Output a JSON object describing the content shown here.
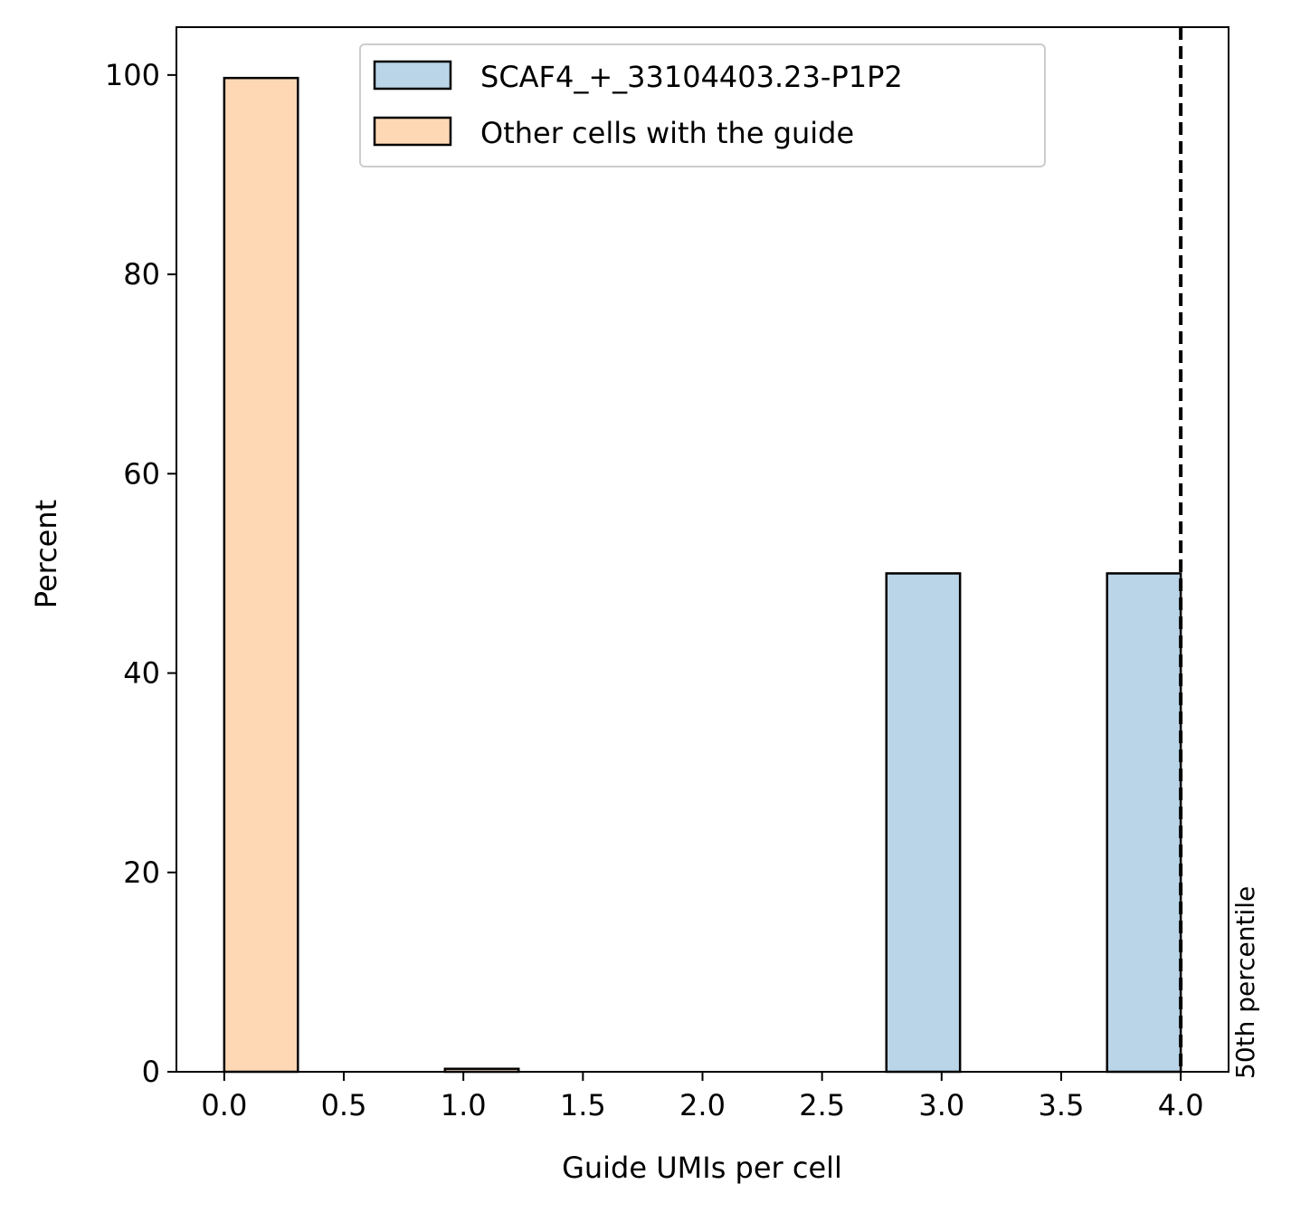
{
  "chart_data": {
    "type": "bar",
    "xlabel": "Guide UMIs per cell",
    "ylabel": "Percent",
    "xlim": [
      -0.2,
      4.2
    ],
    "ylim": [
      0,
      104.8
    ],
    "xticks": [
      "0.0",
      "0.5",
      "1.0",
      "1.5",
      "2.0",
      "2.5",
      "3.0",
      "3.5",
      "4.0"
    ],
    "yticks": [
      "0",
      "20",
      "40",
      "60",
      "80",
      "100"
    ],
    "bin_width": 0.308,
    "series": [
      {
        "name": "SCAF4_+_33104403.23-P1P2",
        "color": "#bad5e8",
        "bins": [
          {
            "x0": 2.769,
            "x1": 3.077,
            "value": 50.0
          },
          {
            "x0": 3.692,
            "x1": 4.0,
            "value": 50.0
          }
        ]
      },
      {
        "name": "Other cells with the guide",
        "color": "#fed8b5",
        "bins": [
          {
            "x0": 0.0,
            "x1": 0.308,
            "value": 99.7
          },
          {
            "x0": 0.923,
            "x1": 1.231,
            "value": 0.3
          }
        ]
      }
    ],
    "vline": {
      "x": 4.0,
      "label": "50th percentile",
      "style": "dashed"
    },
    "legend_position": "top-center"
  }
}
